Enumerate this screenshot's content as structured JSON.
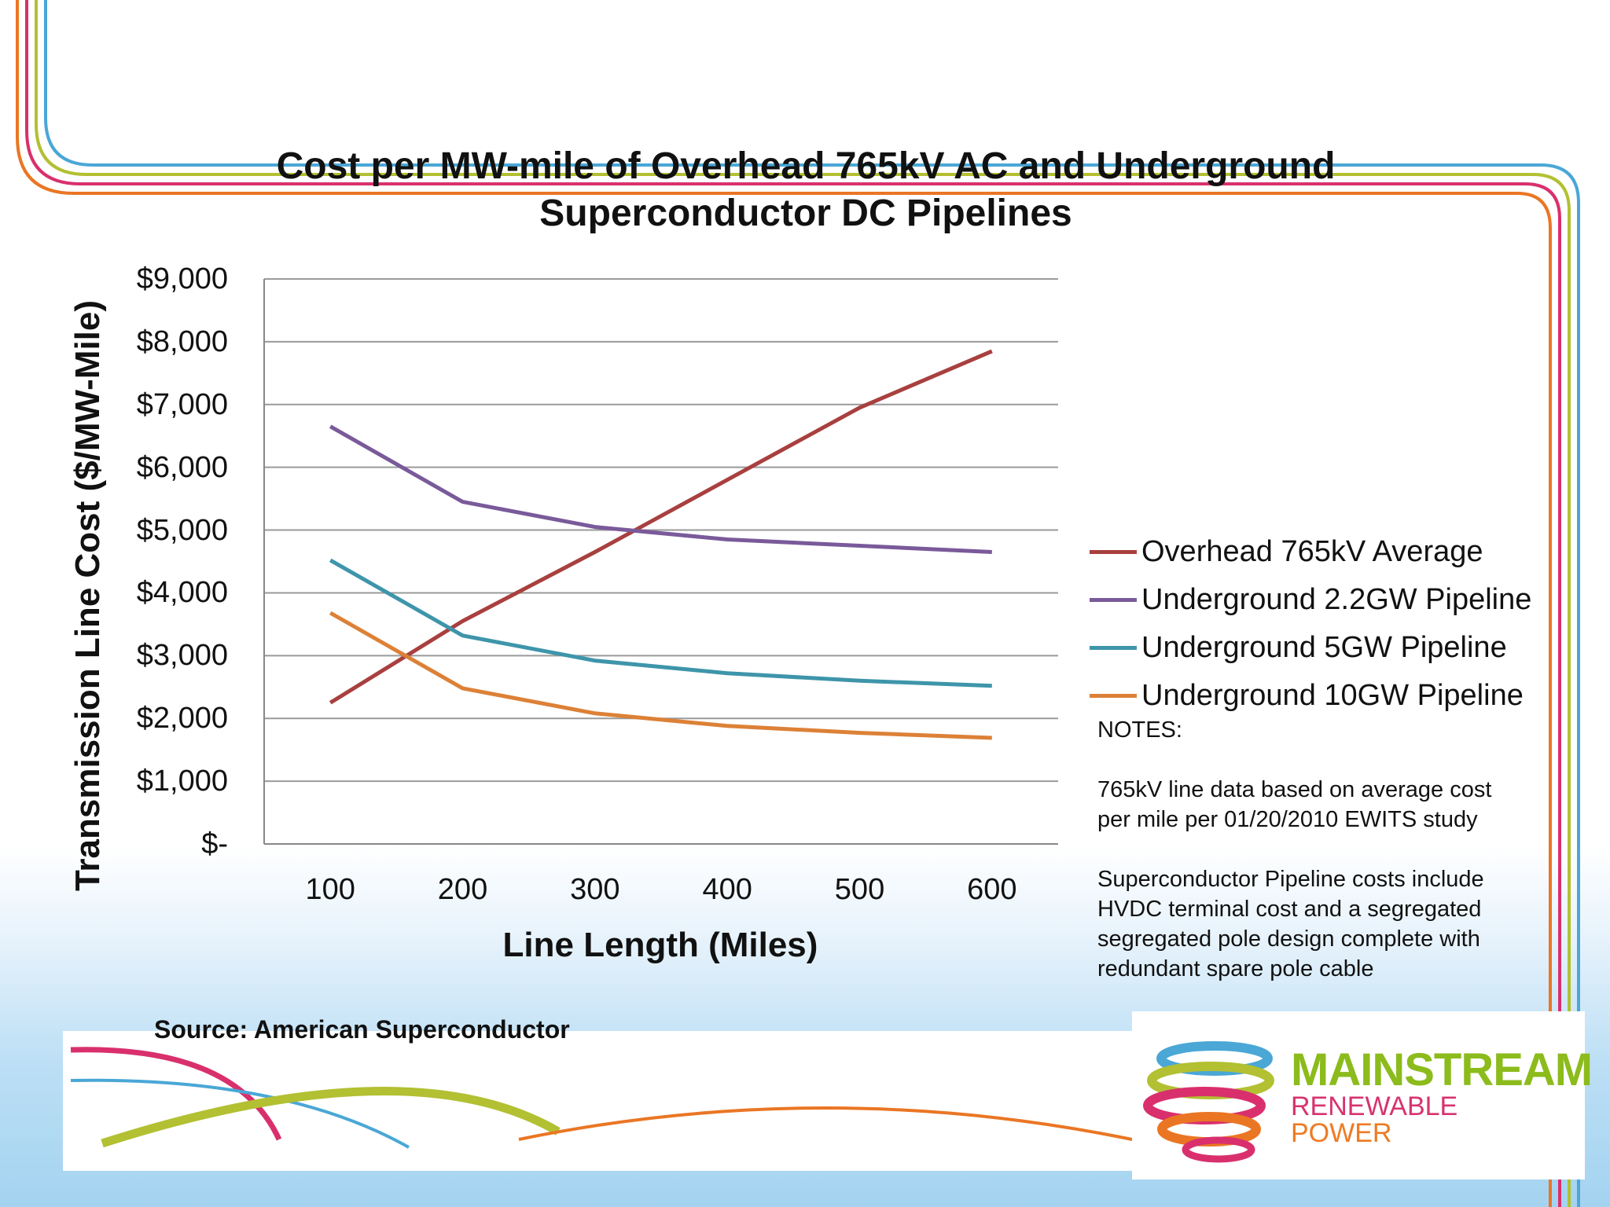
{
  "chart_data": {
    "type": "line",
    "title_line1": "Cost per MW-mile of Overhead 765kV AC and Underground",
    "title_line2": "Superconductor DC Pipelines",
    "xlabel": "Line Length (Miles)",
    "ylabel": "Transmission Line Cost ($/MW-Mile)",
    "x": [
      100,
      200,
      300,
      400,
      500,
      600
    ],
    "x_tick_labels": [
      "100",
      "200",
      "300",
      "400",
      "500",
      "600"
    ],
    "ylim": [
      0,
      9000
    ],
    "y_tick_labels": [
      "$-",
      "$1,000",
      "$2,000",
      "$3,000",
      "$4,000",
      "$5,000",
      "$6,000",
      "$7,000",
      "$8,000",
      "$9,000"
    ],
    "grid": true,
    "legend_position": "right",
    "series": [
      {
        "name": "Overhead 765kV Average",
        "color": "#a8403f",
        "values": [
          2250,
          3550,
          4650,
          5800,
          6950,
          7850
        ]
      },
      {
        "name": "Underground 2.2GW Pipeline",
        "color": "#7a5a9a",
        "values": [
          6650,
          5450,
          5050,
          4850,
          4750,
          4650
        ]
      },
      {
        "name": "Underground 5GW Pipeline",
        "color": "#3e95aa",
        "values": [
          4520,
          3320,
          2920,
          2720,
          2600,
          2520
        ]
      },
      {
        "name": "Underground 10GW Pipeline",
        "color": "#dc8137",
        "values": [
          3680,
          2480,
          2080,
          1880,
          1770,
          1690
        ]
      }
    ]
  },
  "notes": {
    "heading": "NOTES:",
    "note1_line1": "765kV line data based on  average cost",
    "note1_line2": "per mile per  01/20/2010 EWITS study",
    "note2_line1": "Superconductor Pipeline costs include",
    "note2_line2": "HVDC terminal cost and  a segregated",
    "note2_line3": "segregated pole design complete with",
    "note2_line4": "redundant spare pole cable"
  },
  "source": "Source: American Superconductor",
  "logo": {
    "line1": "MAINSTREAM",
    "line2": "RENEWABLE",
    "line3": "POWER"
  },
  "colors": {
    "border_blue": "#4aa7d6",
    "border_green": "#b2c032",
    "border_magenta": "#d9306d",
    "border_orange": "#ea7624",
    "grid": "#9a9a9a"
  }
}
